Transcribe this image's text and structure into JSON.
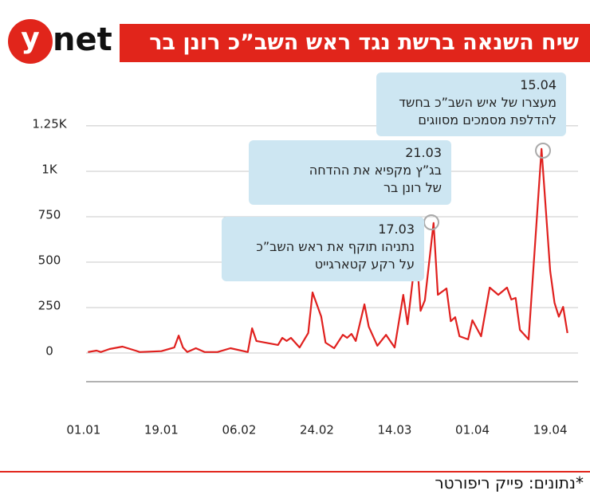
{
  "logo": "net",
  "chart_data": {
    "type": "line",
    "title": "שיח השנאה ברשת נגד ראש השב”כ רונן בר",
    "source": "*נתונים: פייק ריפורטר",
    "color": "#e0201e",
    "x": [
      1,
      3,
      4,
      6,
      9,
      12,
      13,
      18,
      21,
      22,
      23,
      24,
      26,
      28,
      31,
      34,
      38,
      39,
      40,
      45,
      46,
      47,
      48,
      50,
      52,
      53,
      55,
      56,
      58,
      60,
      61,
      62,
      63,
      65,
      66,
      68,
      70,
      72,
      74,
      75,
      77,
      78,
      79,
      81,
      82,
      84,
      85,
      86,
      87,
      89,
      90,
      92,
      94,
      96,
      98,
      99,
      100,
      101,
      103,
      106,
      108,
      109,
      110,
      111,
      112
    ],
    "values": [
      5,
      13,
      5,
      22,
      35,
      13,
      5,
      10,
      30,
      96,
      30,
      5,
      26,
      5,
      5,
      26,
      5,
      136,
      66,
      44,
      83,
      66,
      83,
      30,
      110,
      333,
      200,
      57,
      26,
      100,
      83,
      105,
      66,
      268,
      145,
      40,
      100,
      30,
      320,
      158,
      570,
      232,
      290,
      715,
      320,
      355,
      175,
      197,
      92,
      75,
      180,
      92,
      360,
      320,
      360,
      294,
      303,
      127,
      75,
      1123,
      450,
      276,
      200,
      254,
      110
    ],
    "xlim": [
      -2,
      115
    ],
    "xticks": [
      {
        "value": 0,
        "label": "01.01"
      },
      {
        "value": 18,
        "label": "19.01"
      },
      {
        "value": 36,
        "label": "06.02"
      },
      {
        "value": 54,
        "label": "24.02"
      },
      {
        "value": 72,
        "label": "14.03"
      },
      {
        "value": 90,
        "label": "01.04"
      },
      {
        "value": 108,
        "label": "19.04"
      }
    ],
    "ylim": [
      -158,
      1526
    ],
    "yticks": [
      0,
      250,
      500,
      750,
      {
        "value": 1000,
        "label": "1K"
      },
      {
        "value": 1250,
        "label": "1.25K"
      }
    ],
    "grid": true,
    "annotations": [
      {
        "lines": [
          "17.03",
          "נתניהו תוקף את ראש השב”כ",
          "על רקע קטארגייט"
        ]
      },
      {
        "lines": [
          "21.03",
          "בג”ץ מקפיא את ההדחה",
          "של רונן בר"
        ]
      },
      {
        "lines": [
          "15.04",
          "מעצרו של איש השב”כ בחשד",
          "להדלפת מסמכים מסווגים"
        ]
      }
    ]
  }
}
